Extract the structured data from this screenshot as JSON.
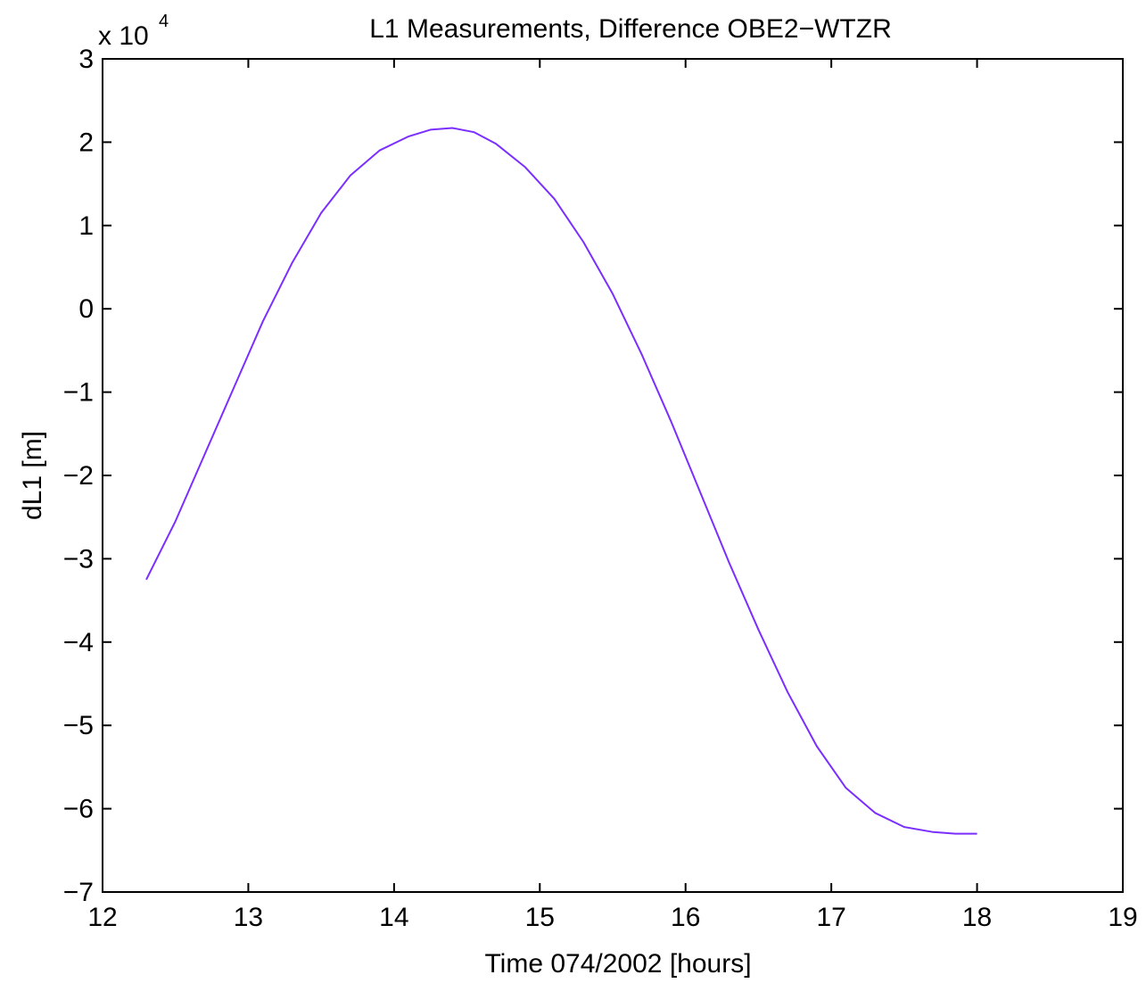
{
  "chart_data": {
    "type": "line",
    "title": "L1 Measurements, Difference OBE2−WTZR",
    "xlabel": "Time 074/2002 [hours]",
    "ylabel": "dL1 [m]",
    "y_scale_multiplier": "x 10",
    "y_scale_exponent": "4",
    "xlim": [
      12,
      19
    ],
    "ylim": [
      -7,
      3
    ],
    "x_ticks": [
      12,
      13,
      14,
      15,
      16,
      17,
      18,
      19
    ],
    "y_ticks": [
      3,
      2,
      1,
      0,
      -1,
      -2,
      -3,
      -4,
      -5,
      -6,
      -7
    ],
    "x_tick_labels": [
      "12",
      "13",
      "14",
      "15",
      "16",
      "17",
      "18",
      "19"
    ],
    "y_tick_labels": [
      "3",
      "2",
      "1",
      "0",
      "−1",
      "−2",
      "−3",
      "−4",
      "−5",
      "−6",
      "−7"
    ],
    "grid": false,
    "series": [
      {
        "color": "#7b2fff",
        "x": [
          12.3,
          12.5,
          12.7,
          12.9,
          13.1,
          13.3,
          13.5,
          13.7,
          13.9,
          14.1,
          14.25,
          14.4,
          14.55,
          14.7,
          14.9,
          15.1,
          15.3,
          15.5,
          15.7,
          15.9,
          16.1,
          16.3,
          16.5,
          16.7,
          16.9,
          17.1,
          17.3,
          17.5,
          17.7,
          17.85,
          18.0
        ],
        "y": [
          -3.25,
          -2.55,
          -1.75,
          -0.95,
          -0.15,
          0.55,
          1.15,
          1.6,
          1.9,
          2.07,
          2.15,
          2.17,
          2.12,
          1.98,
          1.7,
          1.32,
          0.8,
          0.18,
          -0.55,
          -1.35,
          -2.2,
          -3.05,
          -3.85,
          -4.6,
          -5.25,
          -5.75,
          -6.05,
          -6.22,
          -6.28,
          -6.3,
          -6.3
        ]
      }
    ]
  }
}
